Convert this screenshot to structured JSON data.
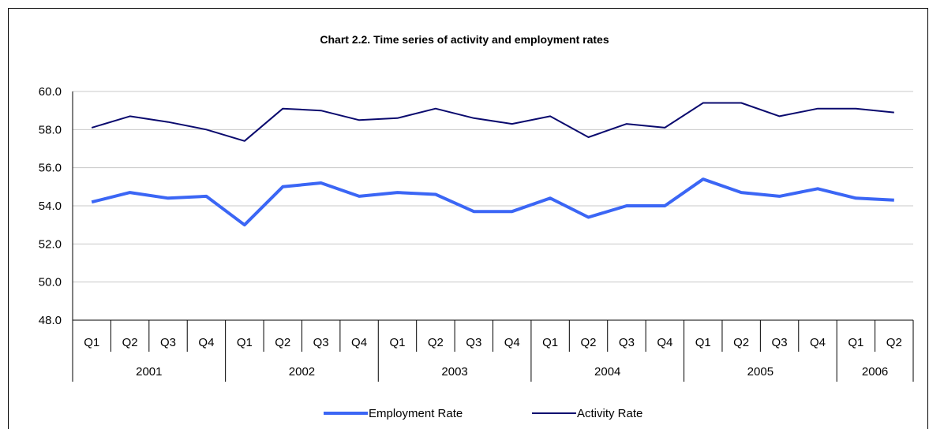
{
  "chart_data": {
    "type": "line",
    "title": "Chart 2.2. Time series of activity and employment rates",
    "xlabel": "",
    "ylabel": "",
    "ylim": [
      48.0,
      60.0
    ],
    "yticks": [
      "48.0",
      "50.0",
      "52.0",
      "54.0",
      "56.0",
      "58.0",
      "60.0"
    ],
    "quarters": [
      "Q1",
      "Q2",
      "Q3",
      "Q4",
      "Q1",
      "Q2",
      "Q3",
      "Q4",
      "Q1",
      "Q2",
      "Q3",
      "Q4",
      "Q1",
      "Q2",
      "Q3",
      "Q4",
      "Q1",
      "Q2",
      "Q3",
      "Q4",
      "Q1",
      "Q2"
    ],
    "years": [
      {
        "label": "2001",
        "quarters": 4
      },
      {
        "label": "2002",
        "quarters": 4
      },
      {
        "label": "2003",
        "quarters": 4
      },
      {
        "label": "2004",
        "quarters": 4
      },
      {
        "label": "2005",
        "quarters": 4
      },
      {
        "label": "2006",
        "quarters": 2
      }
    ],
    "grid": true,
    "legend_position": "bottom",
    "series": [
      {
        "name": "Employment Rate",
        "color": "#3b66f5",
        "values": [
          54.2,
          54.7,
          54.4,
          54.5,
          53.0,
          55.0,
          55.2,
          54.5,
          54.7,
          54.6,
          53.7,
          53.7,
          54.4,
          53.4,
          54.0,
          54.0,
          55.4,
          54.7,
          54.5,
          54.9,
          54.4,
          54.3
        ]
      },
      {
        "name": "Activity Rate",
        "color": "#0a0a6e",
        "values": [
          58.1,
          58.7,
          58.4,
          58.0,
          57.4,
          59.1,
          59.0,
          58.5,
          58.6,
          59.1,
          58.6,
          58.3,
          58.7,
          57.6,
          58.3,
          58.1,
          59.4,
          59.4,
          58.7,
          59.1,
          59.1,
          58.9
        ]
      }
    ]
  }
}
